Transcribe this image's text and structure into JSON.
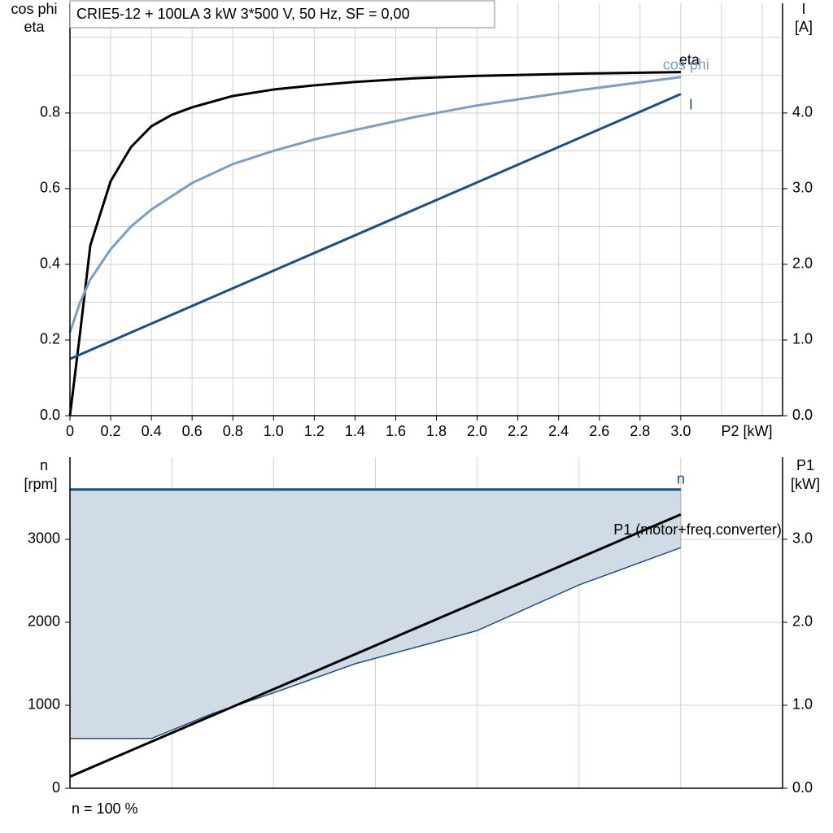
{
  "chart_data": [
    {
      "type": "line",
      "title": "CRIE5-12 + 100LA   3 kW   3*500 V, 50 Hz, SF = 0,00",
      "y_label": [
        "cos phi",
        "eta"
      ],
      "y2_label": [
        "I",
        "[A]"
      ],
      "x_label": "P2 [kW]",
      "xlim": [
        0,
        3.5
      ],
      "xticks": [
        {
          "value": 0,
          "label": "0"
        },
        0.2,
        0.4,
        0.6,
        0.8,
        {
          "value": 1,
          "label": "1.0"
        },
        1.2,
        1.4,
        1.6,
        1.8,
        {
          "value": 2,
          "label": "2.0"
        },
        2.2,
        2.4,
        2.6,
        2.8,
        {
          "value": 3,
          "label": "3.0"
        }
      ],
      "xgrid": [
        3.2,
        3.4
      ],
      "ylim": [
        0,
        1.09
      ],
      "yticks": [
        {
          "value": 0,
          "label": "0.0"
        },
        0.2,
        0.4,
        0.6,
        0.8
      ],
      "ygrid": [
        0.1,
        0.3,
        0.5,
        0.7,
        0.9,
        1.0
      ],
      "y2lim": [
        0,
        5.45
      ],
      "y2ticks": [
        {
          "value": 0,
          "label": "0.0"
        },
        {
          "value": 1,
          "label": "1.0"
        },
        {
          "value": 2,
          "label": "2.0"
        },
        {
          "value": 3,
          "label": "3.0"
        },
        {
          "value": 4,
          "label": "4.0"
        }
      ],
      "grid": true,
      "series": [
        {
          "name": "eta",
          "color": "#000000",
          "x": [
            0,
            0.05,
            0.1,
            0.2,
            0.3,
            0.4,
            0.5,
            0.6,
            0.8,
            1.0,
            1.2,
            1.4,
            1.7,
            2.0,
            2.5,
            3.0
          ],
          "values": [
            0,
            0.22,
            0.45,
            0.62,
            0.71,
            0.765,
            0.795,
            0.815,
            0.845,
            0.862,
            0.873,
            0.882,
            0.892,
            0.898,
            0.904,
            0.908
          ]
        },
        {
          "name": "cos phi",
          "color": "#7b9ec2",
          "x": [
            0,
            0.05,
            0.1,
            0.2,
            0.3,
            0.4,
            0.6,
            0.8,
            1.0,
            1.2,
            1.4,
            1.7,
            2.0,
            2.5,
            3.0
          ],
          "values": [
            0.22,
            0.3,
            0.36,
            0.44,
            0.5,
            0.545,
            0.615,
            0.665,
            0.7,
            0.73,
            0.755,
            0.79,
            0.82,
            0.86,
            0.895
          ]
        },
        {
          "name": "I",
          "color": "#1f4e80",
          "axis": "y2",
          "x": [
            0,
            3.0
          ],
          "values": [
            0.75,
            4.25
          ]
        }
      ]
    },
    {
      "type": "area-line",
      "y_label": [
        "n",
        "[rpm]"
      ],
      "y2_label": [
        "P1",
        "[kW]"
      ],
      "note": "n = 100 %",
      "xlim": [
        0,
        3.5
      ],
      "xgrid": [
        0.5,
        1.0,
        1.5,
        2.0,
        2.5,
        3.0
      ],
      "ylim": [
        0,
        3990
      ],
      "yticks": [
        0,
        1000,
        2000,
        3000
      ],
      "y2lim": [
        0,
        3.99
      ],
      "y2ticks": [
        {
          "value": 0,
          "label": "0.0"
        },
        {
          "value": 1,
          "label": "1.0"
        },
        {
          "value": 2,
          "label": "2.0"
        },
        {
          "value": 3,
          "label": "3.0"
        }
      ],
      "grid": true,
      "area_color": "#d0dbe6",
      "series": [
        {
          "name": "n",
          "color": "#1f4e80",
          "x": [
            0,
            3.0
          ],
          "values": [
            3600,
            3600
          ],
          "min_x": [
            0,
            0.4,
            0.7,
            1.0,
            1.4,
            2.0,
            2.5,
            3.0
          ],
          "min_values": [
            600,
            600,
            900,
            1150,
            1500,
            1900,
            2450,
            2900
          ]
        },
        {
          "name": "P1 (motor+freq.converter)",
          "color": "#000000",
          "axis": "y2",
          "x": [
            0,
            3.0
          ],
          "values": [
            0.14,
            3.3
          ]
        }
      ]
    }
  ]
}
